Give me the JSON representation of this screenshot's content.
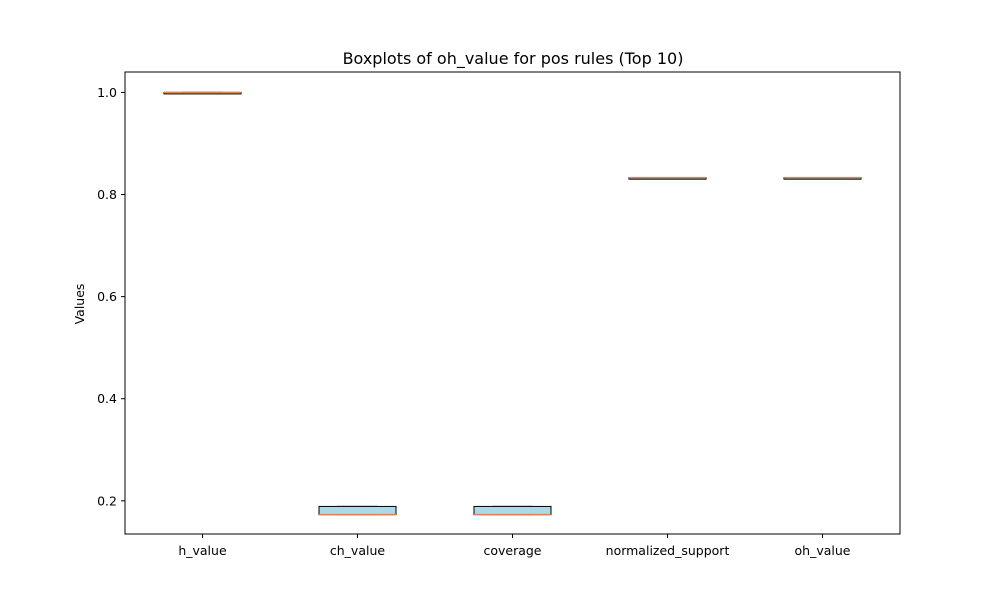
{
  "chart_data": {
    "type": "box",
    "title": "Boxplots of oh_value for pos rules (Top 10)",
    "xlabel": "",
    "ylabel": "Values",
    "ylim": [
      0.135,
      1.04
    ],
    "yticks": [
      0.2,
      0.4,
      0.6,
      0.8,
      1.0
    ],
    "ytick_labels": [
      "0.2",
      "0.4",
      "0.6",
      "0.8",
      "1.0"
    ],
    "grid": false,
    "categories": [
      "h_value",
      "ch_value",
      "coverage",
      "normalized_support",
      "oh_value"
    ],
    "boxes": [
      {
        "label": "h_value",
        "whisker_low": 1.0,
        "q1": 1.0,
        "median": 1.0,
        "q3": 1.0,
        "whisker_high": 1.0
      },
      {
        "label": "ch_value",
        "whisker_low": 0.173,
        "q1": 0.173,
        "median": 0.173,
        "q3": 0.189,
        "whisker_high": 0.189
      },
      {
        "label": "coverage",
        "whisker_low": 0.173,
        "q1": 0.173,
        "median": 0.173,
        "q3": 0.189,
        "whisker_high": 0.189
      },
      {
        "label": "normalized_support",
        "whisker_low": 0.833,
        "q1": 0.833,
        "median": 0.833,
        "q3": 0.833,
        "whisker_high": 0.833
      },
      {
        "label": "oh_value",
        "whisker_low": 0.833,
        "q1": 0.833,
        "median": 0.833,
        "q3": 0.833,
        "whisker_high": 0.833
      }
    ],
    "colors": {
      "box_fill": "#add8e6",
      "box_edge": "#000000",
      "median": "#dd8452",
      "axes": "#000000"
    }
  }
}
